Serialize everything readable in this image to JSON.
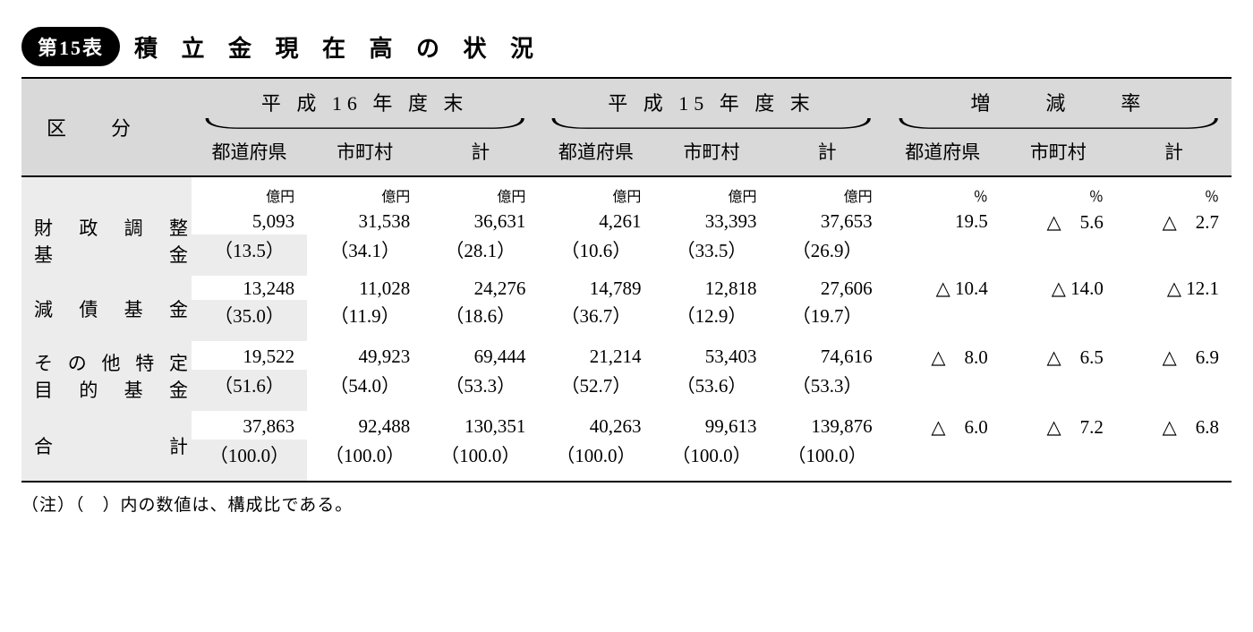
{
  "badge": "第15表",
  "title": "積 立 金 現 在 高 の 状 況",
  "kubun_label": "区分",
  "groups": [
    {
      "label": "平 成 16 年 度 末",
      "subs": [
        "都道府県",
        "市町村",
        "計"
      ]
    },
    {
      "label": "平 成 15 年 度 末",
      "subs": [
        "都道府県",
        "市町村",
        "計"
      ]
    },
    {
      "label": "増　　減　　率",
      "subs": [
        "都道府県",
        "市町村",
        "計"
      ]
    }
  ],
  "unit_money": "億円",
  "unit_pct": "％",
  "rows": [
    {
      "label_lines": [
        "財政調整",
        "基　　金"
      ],
      "h16": {
        "pref": "5,093",
        "muni": "31,538",
        "total": "36,631",
        "pref_p": "（13.5）",
        "muni_p": "（34.1）",
        "total_p": "（28.1）"
      },
      "h15": {
        "pref": "4,261",
        "muni": "33,393",
        "total": "37,653",
        "pref_p": "（10.6）",
        "muni_p": "（33.5）",
        "total_p": "（26.9）"
      },
      "rate": {
        "pref": "19.5",
        "muni": "△　5.6",
        "total": "△　2.7"
      }
    },
    {
      "label_lines": [
        "減債基金"
      ],
      "h16": {
        "pref": "13,248",
        "muni": "11,028",
        "total": "24,276",
        "pref_p": "（35.0）",
        "muni_p": "（11.9）",
        "total_p": "（18.6）"
      },
      "h15": {
        "pref": "14,789",
        "muni": "12,818",
        "total": "27,606",
        "pref_p": "（36.7）",
        "muni_p": "（12.9）",
        "total_p": "（19.7）"
      },
      "rate": {
        "pref": "△ 10.4",
        "muni": "△ 14.0",
        "total": "△ 12.1"
      }
    },
    {
      "label_lines": [
        "その他特定",
        "目的基金"
      ],
      "h16": {
        "pref": "19,522",
        "muni": "49,923",
        "total": "69,444",
        "pref_p": "（51.6）",
        "muni_p": "（54.0）",
        "total_p": "（53.3）"
      },
      "h15": {
        "pref": "21,214",
        "muni": "53,403",
        "total": "74,616",
        "pref_p": "（52.7）",
        "muni_p": "（53.6）",
        "total_p": "（53.3）"
      },
      "rate": {
        "pref": "△　8.0",
        "muni": "△　6.5",
        "total": "△　6.9"
      }
    },
    {
      "label_lines": [
        "合　　計"
      ],
      "h16": {
        "pref": "37,863",
        "muni": "92,488",
        "total": "130,351",
        "pref_p": "（100.0）",
        "muni_p": "（100.0）",
        "total_p": "（100.0）"
      },
      "h15": {
        "pref": "40,263",
        "muni": "99,613",
        "total": "139,876",
        "pref_p": "（100.0）",
        "muni_p": "（100.0）",
        "total_p": "（100.0）"
      },
      "rate": {
        "pref": "△　6.0",
        "muni": "△　7.2",
        "total": "△　6.8"
      }
    }
  ],
  "footnote": "（注）（　）内の数値は、構成比である。",
  "colors": {
    "header_bg": "#d9d9d9",
    "rowlabel_bg": "#ececec",
    "rule": "#000000"
  }
}
